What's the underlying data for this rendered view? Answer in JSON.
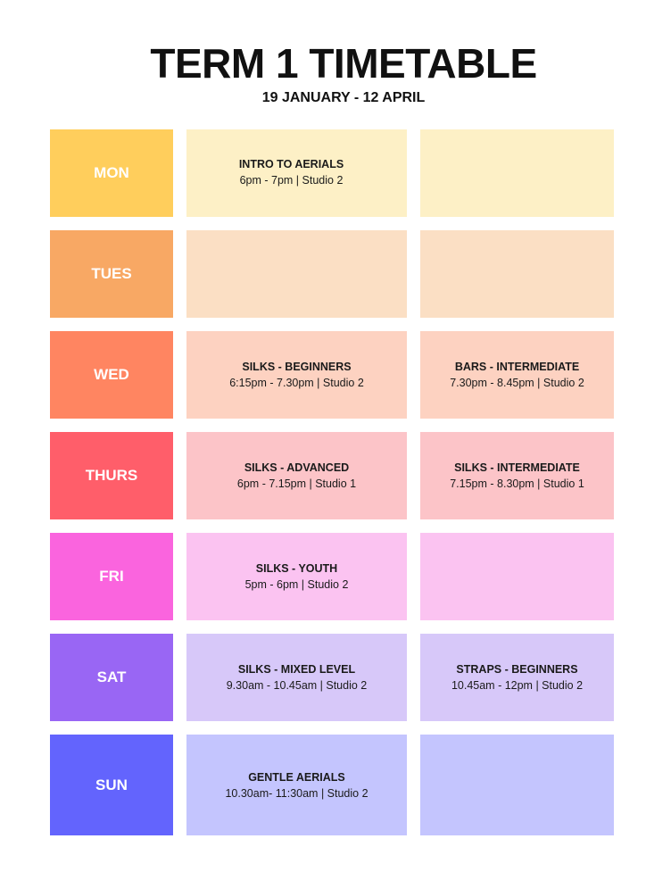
{
  "header": {
    "title": "TERM 1 TIMETABLE",
    "subtitle": "19 JANUARY - 12 APRIL"
  },
  "colors": {
    "mon_day": "#FFCE5C",
    "mon_slot": "#FDF0C6",
    "tues_day": "#F8A864",
    "tues_slot": "#FBDFC4",
    "wed_day": "#FF8561",
    "wed_slot": "#FDD2C1",
    "thurs_day": "#FF5E6A",
    "thurs_slot": "#FCC4C8",
    "fri_day": "#FA64DE",
    "fri_slot": "#FBC3F1",
    "sat_day": "#9966F4",
    "sat_slot": "#D7C8F9",
    "sun_day": "#6364FD",
    "sun_slot": "#C4C5FE"
  },
  "days": [
    {
      "label": "MON",
      "slot1": {
        "name": "INTRO TO AERIALS",
        "time": "6pm - 7pm | Studio 2"
      },
      "slot2": {
        "name": "",
        "time": ""
      }
    },
    {
      "label": "TUES",
      "slot1": {
        "name": "",
        "time": ""
      },
      "slot2": {
        "name": "",
        "time": ""
      }
    },
    {
      "label": "WED",
      "slot1": {
        "name": "SILKS - BEGINNERS",
        "time": "6:15pm - 7.30pm | Studio 2"
      },
      "slot2": {
        "name": "BARS - INTERMEDIATE",
        "time": "7.30pm - 8.45pm | Studio 2"
      }
    },
    {
      "label": "THURS",
      "slot1": {
        "name": "SILKS - ADVANCED",
        "time": "6pm - 7.15pm | Studio 1"
      },
      "slot2": {
        "name": "SILKS - INTERMEDIATE",
        "time": "7.15pm - 8.30pm | Studio 1"
      }
    },
    {
      "label": "FRI",
      "slot1": {
        "name": "SILKS - YOUTH",
        "time": "5pm - 6pm | Studio 2"
      },
      "slot2": {
        "name": "",
        "time": ""
      }
    },
    {
      "label": "SAT",
      "slot1": {
        "name": "SILKS - MIXED LEVEL",
        "time": "9.30am - 10.45am | Studio 2"
      },
      "slot2": {
        "name": "STRAPS - BEGINNERS",
        "time": "10.45am - 12pm | Studio 2"
      }
    },
    {
      "label": "SUN",
      "slot1": {
        "name": "GENTLE AERIALS",
        "time": "10.30am- 11:30am | Studio 2"
      },
      "slot2": {
        "name": "",
        "time": ""
      }
    }
  ]
}
